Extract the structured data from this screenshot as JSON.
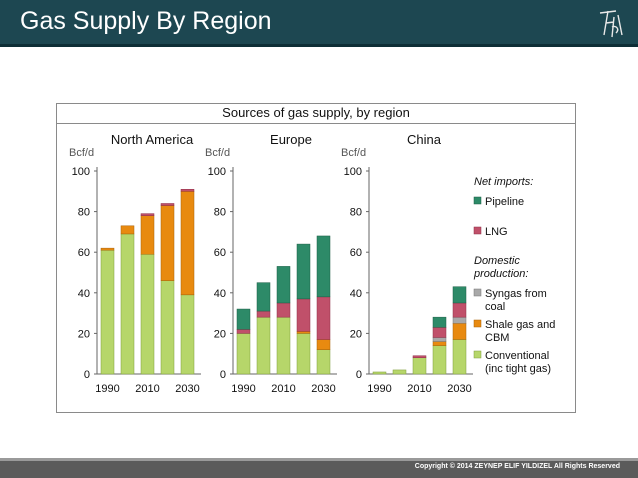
{
  "slide": {
    "title": "Gas Supply By Region",
    "copyright": "Copyright ©  2014 ZEYNEP ELIF YILDIZEL All Rights Reserved"
  },
  "colors": {
    "header_bg": "#1d4751",
    "footer_bg": "#5b5b5b",
    "conventional": "#b6d66a",
    "shale": "#e88a10",
    "syngas": "#a9a9a9",
    "lng": "#c0506a",
    "pipeline": "#2d8a68"
  },
  "chart_data": {
    "type": "bar",
    "stacked": true,
    "title": "Sources of gas supply, by region",
    "ylabel": "Bcf/d",
    "ylim": [
      0,
      100
    ],
    "yticks": [
      0,
      20,
      40,
      60,
      80,
      100
    ],
    "categories": [
      "1990",
      "2000",
      "2010",
      "2020",
      "2030"
    ],
    "category_tick_labels": [
      "1990",
      "2010",
      "2030"
    ],
    "legend": {
      "position": "right",
      "groups": [
        {
          "heading": "Net imports:",
          "items": [
            "Pipeline",
            "LNG"
          ]
        },
        {
          "heading": "Domestic production:",
          "items": [
            "Syngas from coal",
            "Shale gas and CBM",
            "Conventional (inc tight gas)"
          ]
        }
      ]
    },
    "series": [
      {
        "name": "Conventional (inc tight gas)",
        "key": "conventional"
      },
      {
        "name": "Shale gas and CBM",
        "key": "shale"
      },
      {
        "name": "Syngas from coal",
        "key": "syngas"
      },
      {
        "name": "LNG",
        "key": "lng"
      },
      {
        "name": "Pipeline",
        "key": "pipeline"
      }
    ],
    "panels": [
      {
        "name": "North America",
        "values": {
          "conventional": [
            61,
            69,
            59,
            46,
            39
          ],
          "shale": [
            1,
            4,
            19,
            37,
            51
          ],
          "syngas": [
            0,
            0,
            0,
            0,
            0
          ],
          "lng": [
            0,
            0,
            1,
            1,
            1
          ],
          "pipeline": [
            0,
            0,
            0,
            0,
            0
          ]
        }
      },
      {
        "name": "Europe",
        "values": {
          "conventional": [
            20,
            28,
            28,
            20,
            12
          ],
          "shale": [
            0,
            0,
            0,
            1,
            5
          ],
          "syngas": [
            0,
            0,
            0,
            0,
            0
          ],
          "lng": [
            2,
            3,
            7,
            16,
            21
          ],
          "pipeline": [
            10,
            14,
            18,
            27,
            30
          ]
        }
      },
      {
        "name": "China",
        "values": {
          "conventional": [
            1,
            2,
            8,
            14,
            17
          ],
          "shale": [
            0,
            0,
            0,
            2,
            8
          ],
          "syngas": [
            0,
            0,
            0,
            2,
            3
          ],
          "lng": [
            0,
            0,
            1,
            5,
            7
          ],
          "pipeline": [
            0,
            0,
            0,
            5,
            8
          ]
        }
      }
    ]
  }
}
